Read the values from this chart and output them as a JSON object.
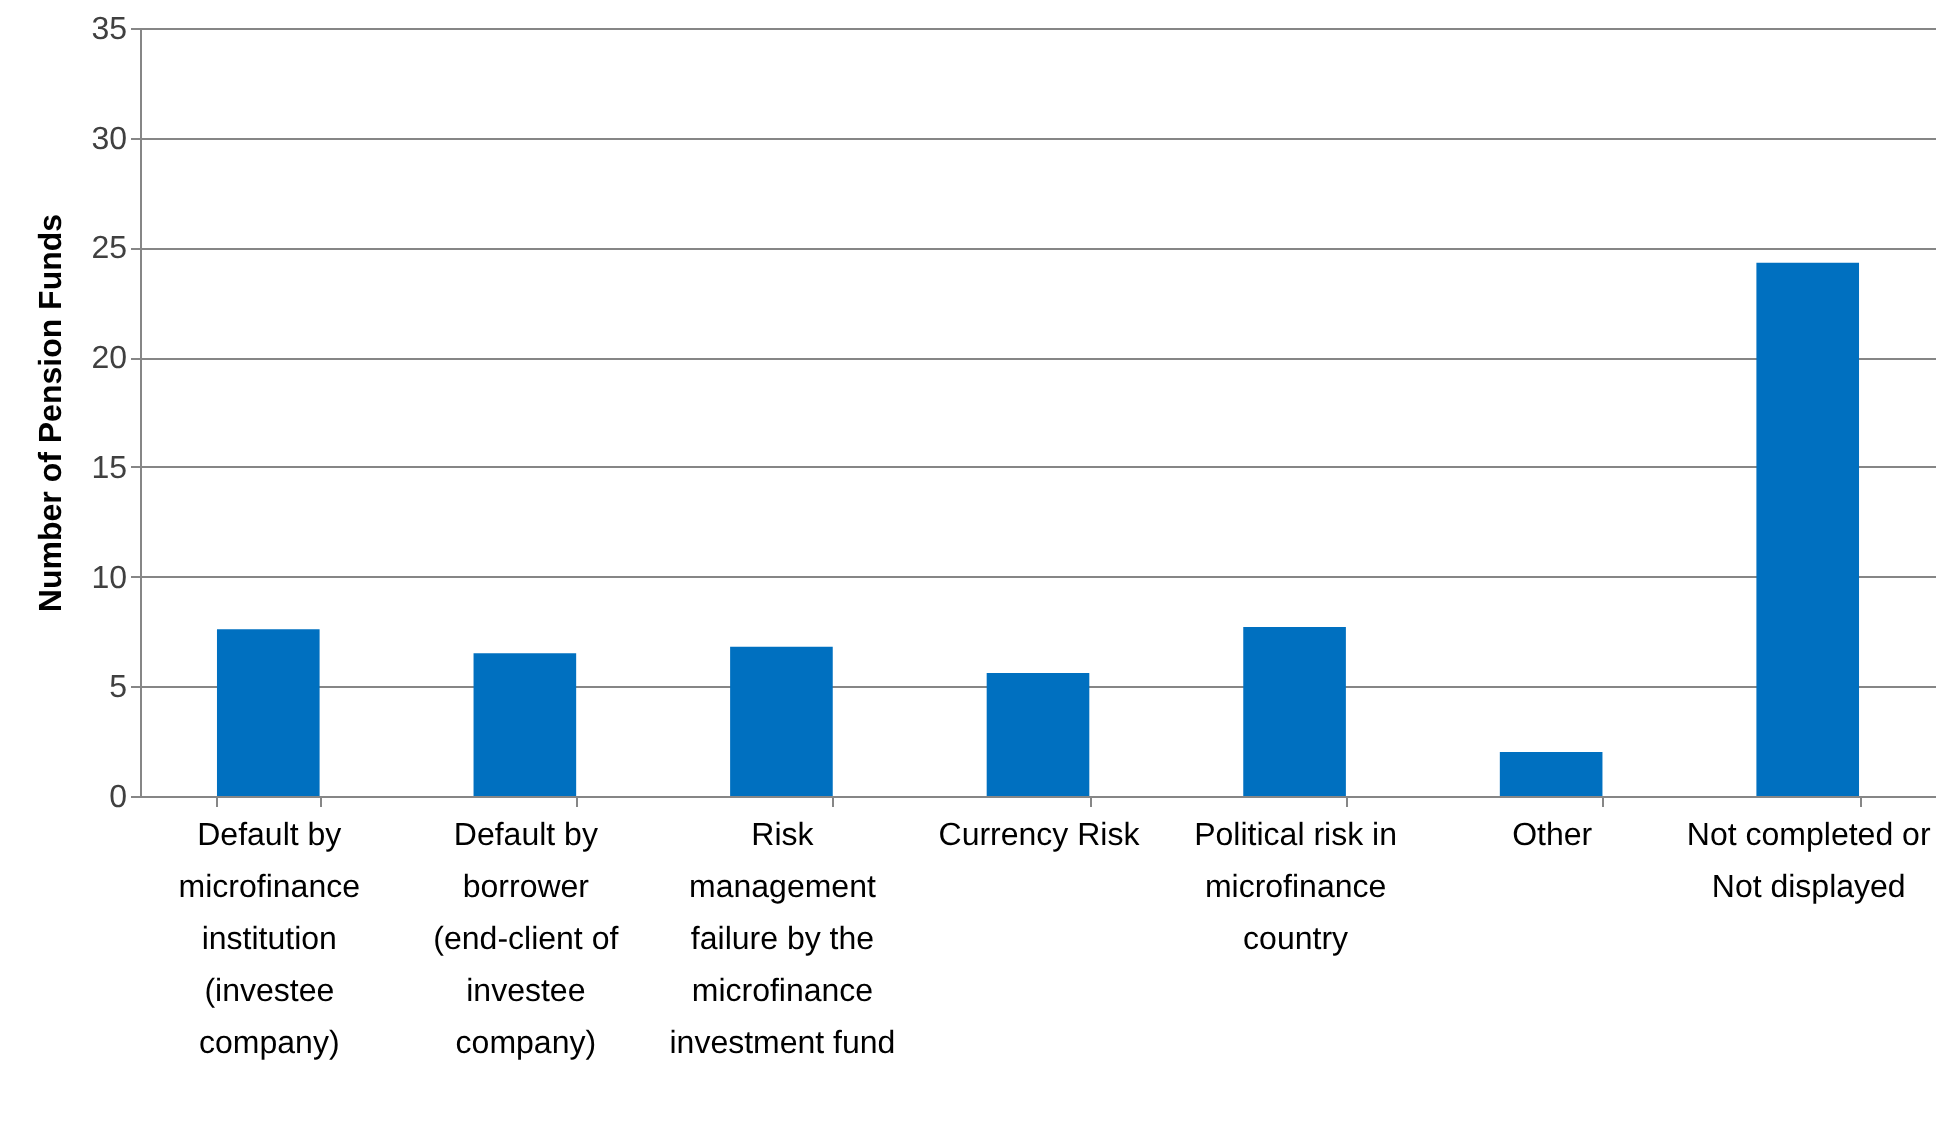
{
  "chart_data": {
    "type": "bar",
    "ylabel": "Number of Pension Funds",
    "categories": [
      "Default by microfinance institution (investee company)",
      "Default by borrower (end-client of investee company)",
      "Risk management failure by the microfinance investment fund",
      "Currency Risk",
      "Political risk in microfinance country",
      "Other",
      "Not completed or Not displayed"
    ],
    "values": [
      7.6,
      6.5,
      6.8,
      5.6,
      7.7,
      2.0,
      24.3
    ],
    "color": "#0070c0",
    "ylim": [
      0,
      35
    ],
    "yticks": [
      0,
      5,
      10,
      15,
      20,
      25,
      30,
      35
    ],
    "grid": "y"
  }
}
